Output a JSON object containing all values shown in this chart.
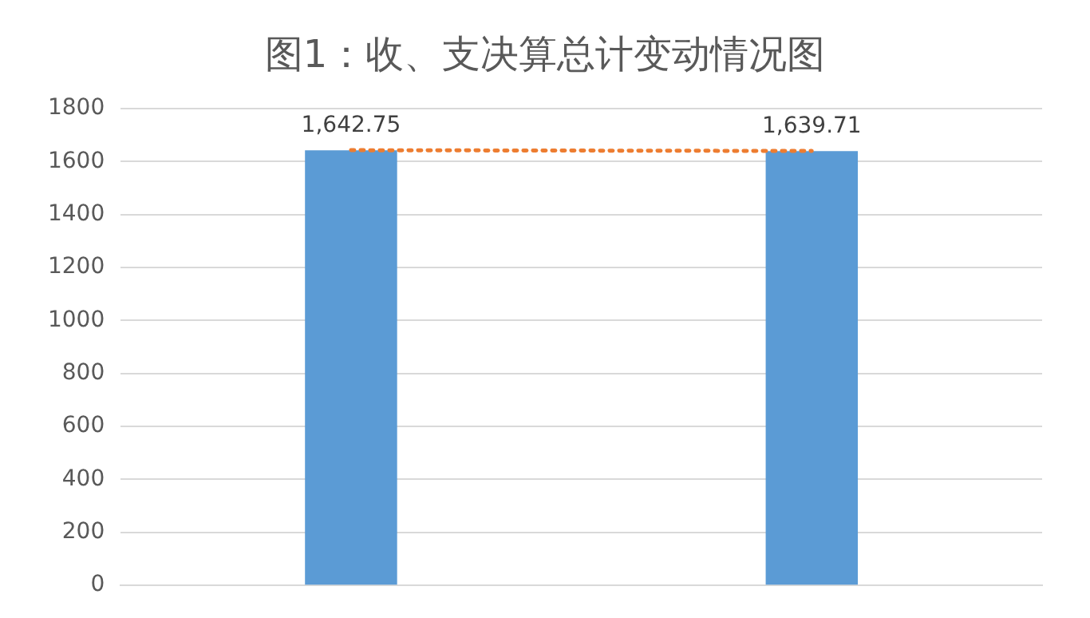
{
  "chart_data": {
    "type": "bar",
    "title": "图1：收、支决算总计变动情况图",
    "categories": [
      null,
      null
    ],
    "series": [
      {
        "color": "#5b9bd5",
        "values": [
          1642.75,
          1639.71
        ],
        "value_labels": [
          "1,642.75",
          "1,639.71"
        ]
      },
      {
        "type": "line",
        "color": "#ed7d31",
        "values": [
          1643,
          1640
        ],
        "line_style": "dotted",
        "marker": "none"
      }
    ],
    "ylim": [
      0,
      1800
    ],
    "yticks": [
      0,
      200,
      400,
      600,
      800,
      1000,
      1200,
      1400,
      1600,
      1800
    ],
    "grid": "y",
    "legend": false
  }
}
